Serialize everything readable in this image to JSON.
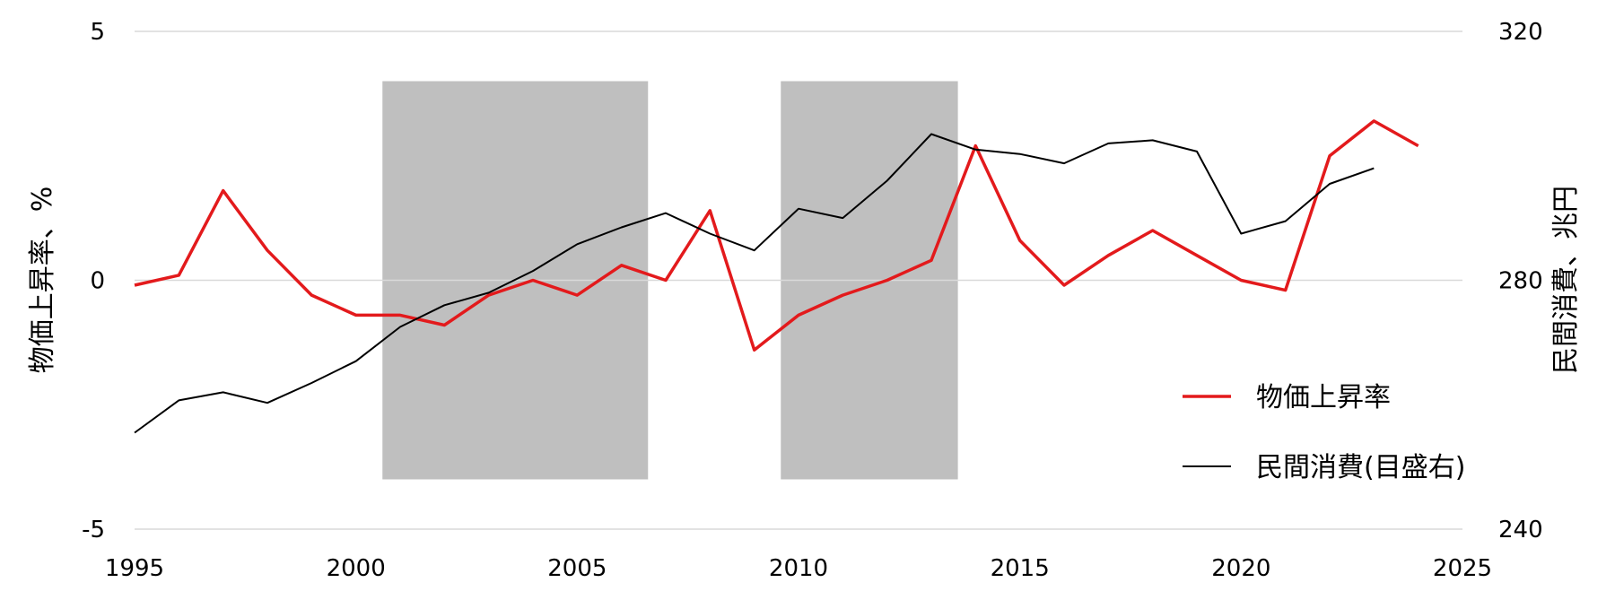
{
  "chart_data": {
    "type": "line",
    "title": "",
    "xlabel": "",
    "ylabel_left": "物価上昇率、%",
    "ylabel_right": "民間消費、兆円",
    "xlim": [
      1995,
      2025
    ],
    "ylim_left": [
      -5,
      5
    ],
    "ylim_right": [
      240,
      320
    ],
    "x_ticks": [
      "1995",
      "2000",
      "2005",
      "2010",
      "2015",
      "2020",
      "2025"
    ],
    "y_left_ticks": [
      "5",
      "0",
      "-5"
    ],
    "y_right_ticks": [
      "320",
      "280",
      "240"
    ],
    "grid": true,
    "legend_position": "bottom-right",
    "shaded_periods": [
      {
        "start": 2000.6,
        "end": 2006.6,
        "ymin": -4,
        "ymax": 4
      },
      {
        "start": 2009.6,
        "end": 2013.6,
        "ymin": -4,
        "ymax": 4
      }
    ],
    "series": [
      {
        "name": "物価上昇率",
        "axis": "left",
        "color": "#e31a1c",
        "x": [
          1995,
          1996,
          1997,
          1998,
          1999,
          2000,
          2001,
          2002,
          2003,
          2004,
          2005,
          2006,
          2007,
          2008,
          2009,
          2010,
          2011,
          2012,
          2013,
          2014,
          2015,
          2016,
          2017,
          2018,
          2019,
          2020,
          2021,
          2022,
          2023,
          2024
        ],
        "values": [
          -0.1,
          0.1,
          1.8,
          0.6,
          -0.3,
          -0.7,
          -0.7,
          -0.9,
          -0.3,
          0.0,
          -0.3,
          0.3,
          0.0,
          1.4,
          -1.4,
          -0.7,
          -0.3,
          0.0,
          0.4,
          2.7,
          0.8,
          -0.1,
          0.5,
          1.0,
          0.5,
          0.0,
          -0.2,
          2.5,
          3.2,
          2.7
        ]
      },
      {
        "name": "民間消費(目盛右)",
        "axis": "right",
        "color": "#000000",
        "x": [
          1995,
          1996,
          1997,
          1998,
          1999,
          2000,
          2001,
          2002,
          2003,
          2004,
          2005,
          2006,
          2007,
          2008,
          2009,
          2010,
          2011,
          2012,
          2013,
          2014,
          2015,
          2016,
          2017,
          2018,
          2019,
          2020,
          2021,
          2022,
          2023
        ],
        "values": [
          255.5,
          260.7,
          262.0,
          260.3,
          263.5,
          267.0,
          272.5,
          276.0,
          278.0,
          281.5,
          285.8,
          288.5,
          290.8,
          287.5,
          284.8,
          291.5,
          290.0,
          296.0,
          303.5,
          301.0,
          300.3,
          298.8,
          302.0,
          302.5,
          300.7,
          287.5,
          289.5,
          295.5,
          298.0
        ]
      }
    ]
  }
}
